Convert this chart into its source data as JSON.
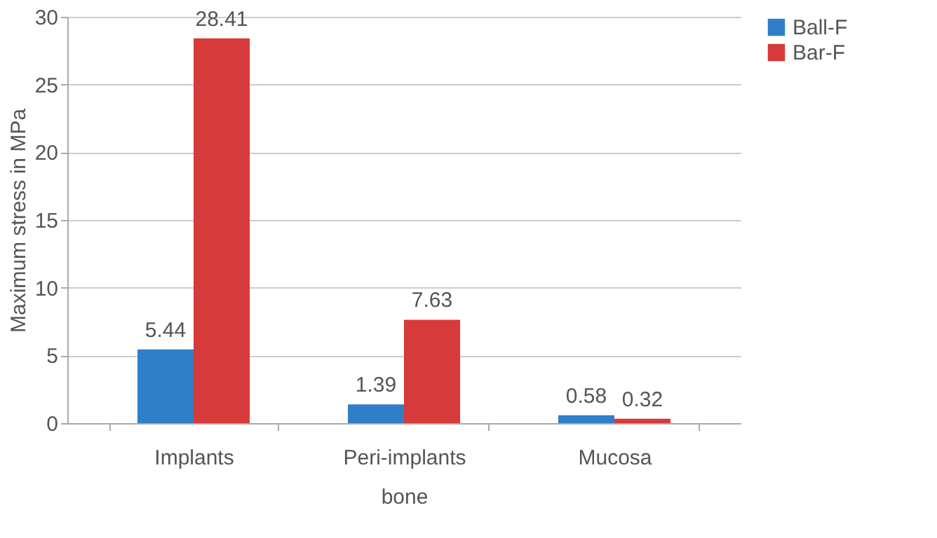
{
  "chart_data": {
    "type": "bar",
    "ylabel": "Maximum stress in MPa",
    "categories": [
      "Implants",
      "Peri-implants bone",
      "Mucosa"
    ],
    "series": [
      {
        "name": "Ball-F",
        "color": "#2f7fc8",
        "values": [
          5.44,
          1.39,
          0.58
        ]
      },
      {
        "name": "Bar-F",
        "color": "#d63a3a",
        "values": [
          28.41,
          7.63,
          0.32
        ]
      }
    ],
    "ylim": [
      0,
      30
    ],
    "yticks": [
      0,
      5,
      10,
      15,
      20,
      25,
      30
    ],
    "grid": "y",
    "legend": "right",
    "data_labels": true
  }
}
